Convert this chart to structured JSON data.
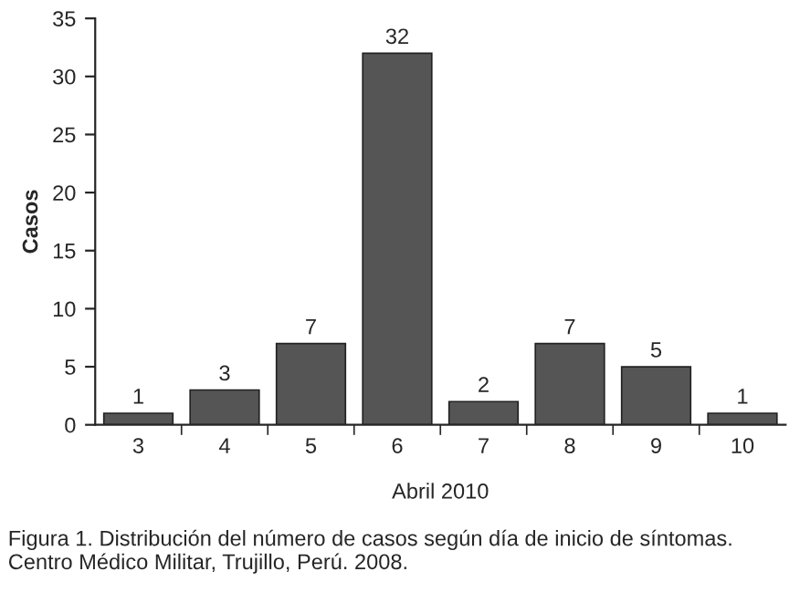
{
  "chart_data": {
    "type": "bar",
    "xlabel": "Abril 2010",
    "ylabel": "Casos",
    "categories": [
      "3",
      "4",
      "5",
      "6",
      "7",
      "8",
      "9",
      "10"
    ],
    "values": [
      1,
      3,
      7,
      32,
      2,
      7,
      5,
      1
    ],
    "color": "#555555",
    "ylim": [
      0,
      35
    ],
    "yticks": [
      0,
      5,
      10,
      15,
      20,
      25,
      30,
      35
    ],
    "data_labels": true,
    "grid": false,
    "annotations": [
      "Figura 1. Distribución del número de casos según día de inicio de síntomas. Centro Médico Militar, Trujillo, Perú. 2008."
    ]
  }
}
